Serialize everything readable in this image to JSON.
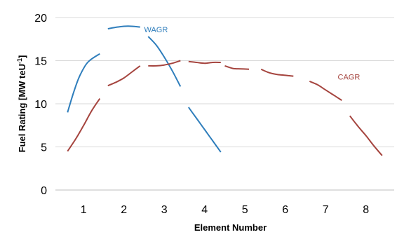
{
  "chart_data": {
    "type": "line",
    "title": "",
    "xlabel": "Element Number",
    "ylabel": {
      "main": "Fuel Rating [MW teU",
      "sup": "-1",
      "close": "]"
    },
    "xlim": [
      0.3,
      8.7
    ],
    "ylim": [
      0,
      20
    ],
    "x_ticks": [
      1,
      2,
      3,
      4,
      5,
      6,
      7,
      8
    ],
    "y_ticks": [
      0,
      5,
      10,
      15,
      20
    ],
    "grid": "horizontal",
    "legend": "none (series labelled directly on chart)",
    "series": [
      {
        "name": "WAGR",
        "color": "#2f7ebc",
        "style": "dashed-segments",
        "segments": [
          [
            [
              0.6,
              9.0
            ],
            [
              0.75,
              11.3
            ],
            [
              0.9,
              13.2
            ],
            [
              1.1,
              14.8
            ],
            [
              1.4,
              15.8
            ]
          ],
          [
            [
              1.6,
              18.7
            ],
            [
              1.85,
              18.9
            ],
            [
              2.1,
              19.0
            ],
            [
              2.4,
              18.9
            ]
          ],
          [
            [
              2.6,
              17.8
            ],
            [
              2.8,
              16.8
            ],
            [
              3.0,
              15.4
            ],
            [
              3.2,
              13.8
            ],
            [
              3.4,
              12.0
            ]
          ],
          [
            [
              3.6,
              9.6
            ],
            [
              3.8,
              8.3
            ],
            [
              4.0,
              7.0
            ],
            [
              4.2,
              5.7
            ],
            [
              4.4,
              4.4
            ]
          ]
        ]
      },
      {
        "name": "CAGR",
        "color": "#a5443e",
        "style": "dashed-segments",
        "segments": [
          [
            [
              0.6,
              4.5
            ],
            [
              0.8,
              5.9
            ],
            [
              1.0,
              7.5
            ],
            [
              1.2,
              9.2
            ],
            [
              1.4,
              10.6
            ]
          ],
          [
            [
              1.6,
              12.1
            ],
            [
              1.8,
              12.5
            ],
            [
              2.0,
              13.0
            ],
            [
              2.2,
              13.7
            ],
            [
              2.4,
              14.4
            ]
          ],
          [
            [
              2.6,
              14.4
            ],
            [
              2.8,
              14.4
            ],
            [
              3.0,
              14.5
            ],
            [
              3.2,
              14.7
            ],
            [
              3.4,
              15.0
            ]
          ],
          [
            [
              3.6,
              14.9
            ],
            [
              3.8,
              14.8
            ],
            [
              4.0,
              14.7
            ],
            [
              4.2,
              14.8
            ],
            [
              4.4,
              14.8
            ]
          ],
          [
            [
              4.5,
              14.4
            ],
            [
              4.7,
              14.1
            ],
            [
              4.9,
              14.05
            ],
            [
              5.1,
              14.0
            ]
          ],
          [
            [
              5.4,
              14.0
            ],
            [
              5.6,
              13.6
            ],
            [
              5.8,
              13.4
            ],
            [
              6.0,
              13.3
            ],
            [
              6.2,
              13.2
            ]
          ],
          [
            [
              6.6,
              12.6
            ],
            [
              6.8,
              12.2
            ],
            [
              7.0,
              11.6
            ],
            [
              7.2,
              11.0
            ],
            [
              7.4,
              10.4
            ]
          ],
          [
            [
              7.6,
              8.6
            ],
            [
              7.8,
              7.4
            ],
            [
              8.0,
              6.3
            ],
            [
              8.2,
              5.1
            ],
            [
              8.4,
              4.0
            ]
          ]
        ]
      }
    ],
    "annotations": [
      {
        "text": "WAGR",
        "x": 2.5,
        "y": 18.3,
        "color": "#2f7ebc"
      },
      {
        "text": "CAGR",
        "x": 7.3,
        "y": 12.8,
        "color": "#a5443e"
      }
    ]
  }
}
